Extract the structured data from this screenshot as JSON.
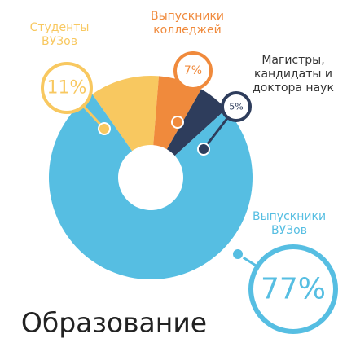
{
  "chart_data": {
    "type": "pie",
    "title": "Образование",
    "categories": [
      "Студенты\nВУЗов",
      "Выпускники\nколледжей",
      "Магистры,\nкандидаты и\nдоктора наук",
      "Выпускники\nВУЗов"
    ],
    "values": [
      11,
      7,
      5,
      77
    ],
    "value_labels": [
      "11%",
      "7%",
      "5%",
      "77%"
    ],
    "colors": [
      "#f8c860",
      "#f08a3c",
      "#2e3d5c",
      "#56bee2"
    ]
  }
}
